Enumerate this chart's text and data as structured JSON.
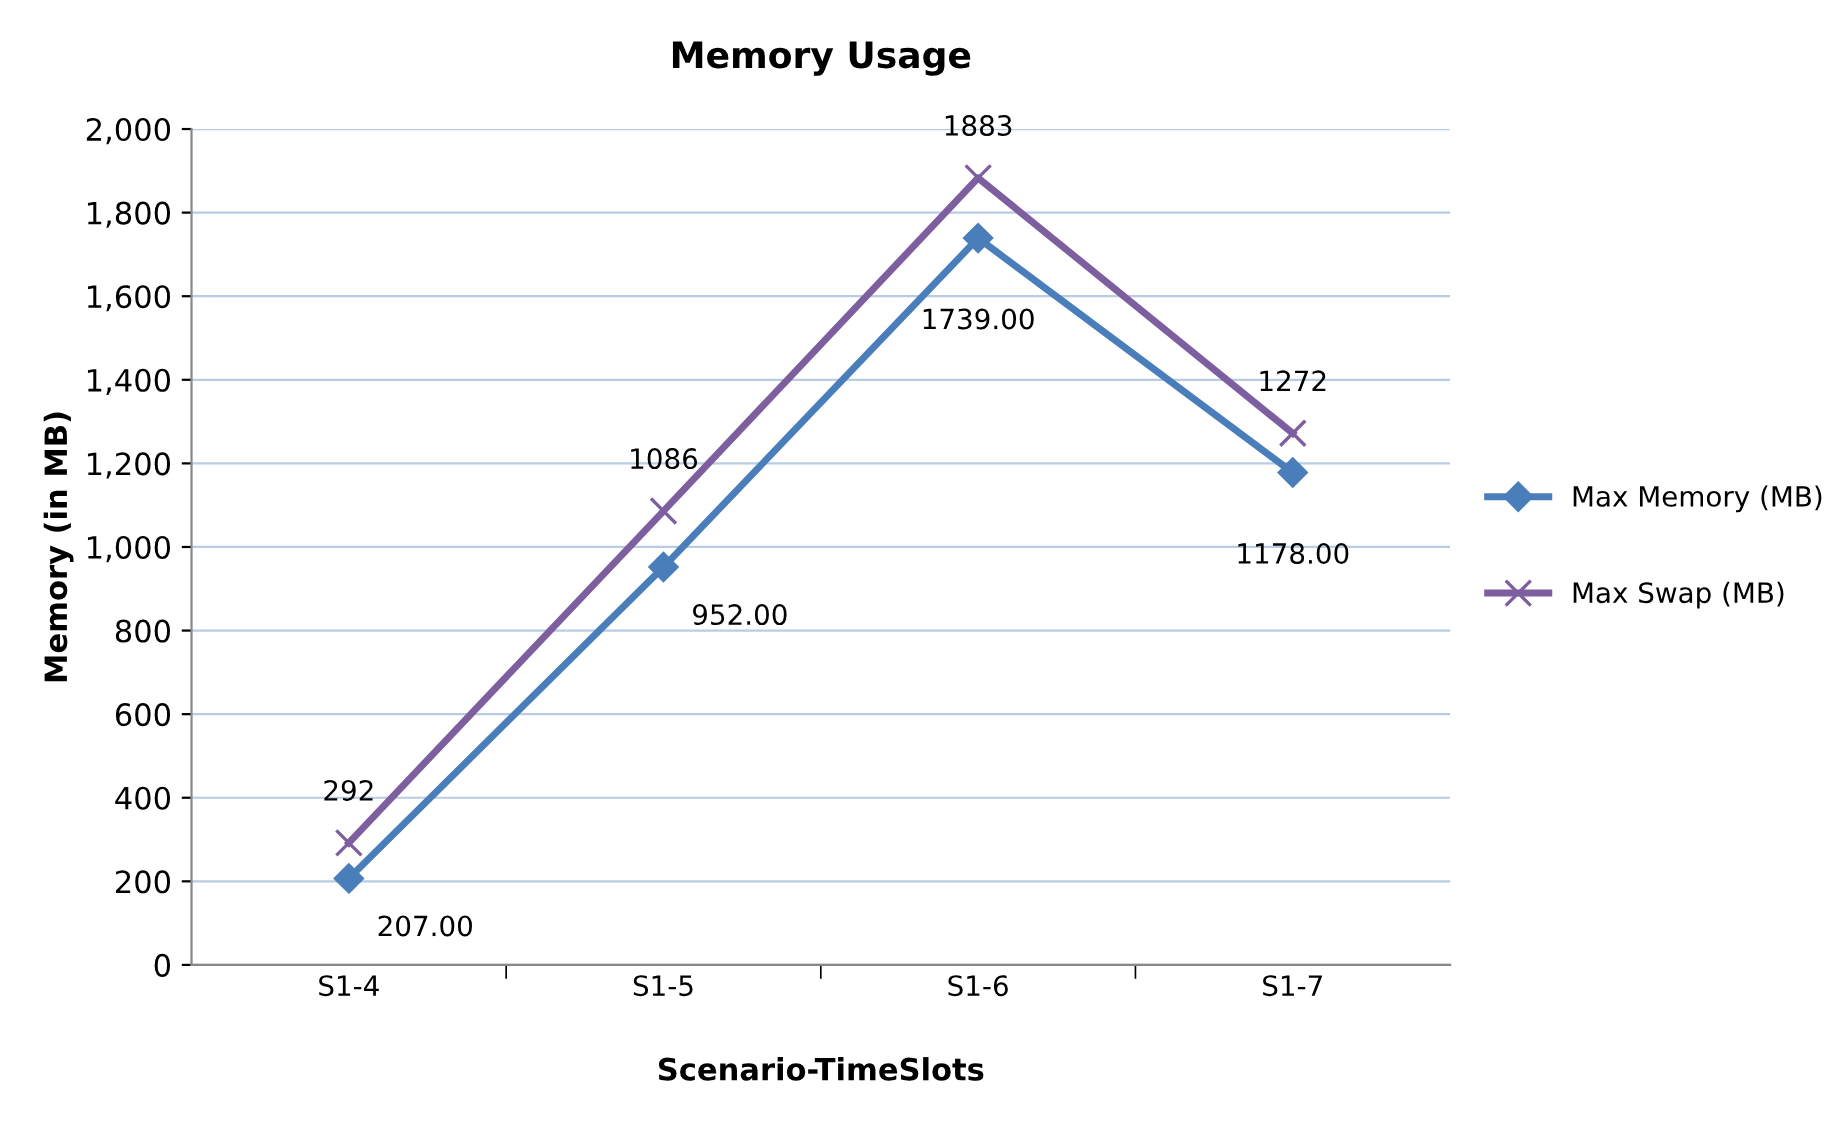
{
  "chart_data": {
    "type": "line",
    "title": "Memory Usage",
    "xlabel": "Scenario-TimeSlots",
    "ylabel": "Memory (in MB)",
    "categories": [
      "S1-4",
      "S1-5",
      "S1-6",
      "S1-7"
    ],
    "series": [
      {
        "name": "Max Memory (MB)",
        "color": "#4a7ebb",
        "marker": "diamond",
        "values": [
          207,
          952,
          1739,
          1178
        ],
        "value_labels": [
          "207.00",
          "952.00",
          "1739.00",
          "1178.00"
        ]
      },
      {
        "name": "Max Swap (MB)",
        "color": "#7d5fa0",
        "marker": "cross",
        "values": [
          292,
          1086,
          1883,
          1272
        ],
        "value_labels": [
          "292",
          "1086",
          "1883",
          "1272"
        ]
      }
    ],
    "ylim": [
      0,
      2000
    ],
    "yticks": [
      0,
      200,
      400,
      600,
      800,
      {
        "value": 1000,
        "label": "1,000"
      },
      {
        "value": 1200,
        "label": "1,200"
      },
      {
        "value": 1400,
        "label": "1,400"
      },
      {
        "value": 1600,
        "label": "1,600"
      },
      {
        "value": 1800,
        "label": "1,800"
      },
      {
        "value": 2000,
        "label": "2,000"
      }
    ],
    "grid": "y",
    "legend": "right",
    "line_style": "solid"
  }
}
